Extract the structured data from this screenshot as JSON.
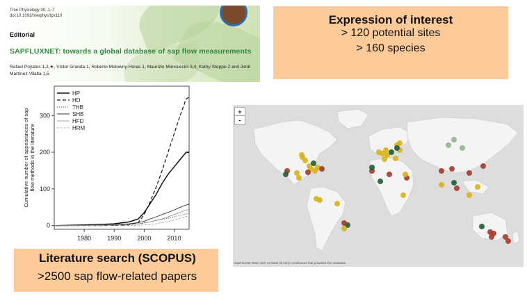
{
  "editorial": {
    "journal": "Tree Physiology 00, 1–7",
    "doi": "doi:10.1093/treephys/tpx110",
    "type": "Editorial",
    "title": "SAPFLUXNET: towards a global database of sap flow measurements",
    "authors": "Rafael Poyatos 1,2,★, Víctor Granda 1, Roberto Molowny-Horas 1, Maurizio Mencuccini 3,4, Kathy Steppe 2 and Jordi Martínez-Vilalta 1,5"
  },
  "expression": {
    "title": "Expression of interest",
    "line1": "> 120 potential sites",
    "line2": "> 160 species"
  },
  "literature": {
    "title": "Literature search (SCOPUS)",
    "subtitle": ">2500 sap flow-related papers"
  },
  "chart_data": {
    "type": "line",
    "ylabel": "Cumulative number of appearances of sap flow methods in the literature",
    "xlim": [
      1970,
      2015
    ],
    "ylim": [
      -10,
      380
    ],
    "xticks": [
      1980,
      1990,
      2000,
      2010
    ],
    "yticks": [
      0,
      100,
      200,
      300
    ],
    "legend_position": "top-left",
    "x": [
      1970,
      1975,
      1980,
      1985,
      1990,
      1995,
      1998,
      2000,
      2002,
      2004,
      2006,
      2008,
      2010,
      2012,
      2014,
      2015
    ],
    "series": [
      {
        "name": "HP",
        "style": "solid-thick",
        "values": [
          0,
          1,
          2,
          3,
          5,
          10,
          18,
          35,
          60,
          85,
          115,
          140,
          160,
          180,
          200,
          200
        ]
      },
      {
        "name": "HD",
        "style": "dashed",
        "values": [
          0,
          0,
          0,
          0,
          1,
          2,
          8,
          30,
          65,
          105,
          150,
          200,
          250,
          300,
          345,
          350
        ]
      },
      {
        "name": "THB",
        "style": "dotted",
        "values": [
          0,
          0,
          1,
          2,
          3,
          4,
          5,
          8,
          10,
          14,
          17,
          20,
          24,
          28,
          32,
          33
        ]
      },
      {
        "name": "SHB",
        "style": "solid",
        "values": [
          0,
          0,
          1,
          2,
          3,
          5,
          8,
          12,
          18,
          24,
          30,
          36,
          42,
          50,
          56,
          58
        ]
      },
      {
        "name": "HFD",
        "style": "solid-thin",
        "values": [
          0,
          0,
          0,
          1,
          2,
          3,
          5,
          7,
          10,
          14,
          18,
          24,
          30,
          36,
          42,
          44
        ]
      },
      {
        "name": "HRM",
        "style": "dashed-thin",
        "values": [
          0,
          0,
          0,
          0,
          0,
          0,
          1,
          2,
          3,
          5,
          8,
          11,
          15,
          20,
          25,
          27
        ]
      }
    ]
  },
  "map": {
    "zoom_in": "+",
    "zoom_out": "-",
    "credit": "SapFluxNet Team wish to thank all early contributors that provided this metadata.",
    "colors": {
      "yellow": "#d7b21a",
      "darkred": "#a23b2c",
      "green": "#1f5c34",
      "lightgreen": "#8fb58a",
      "land": "#f4f4f4",
      "water": "#dcdcdc"
    }
  }
}
